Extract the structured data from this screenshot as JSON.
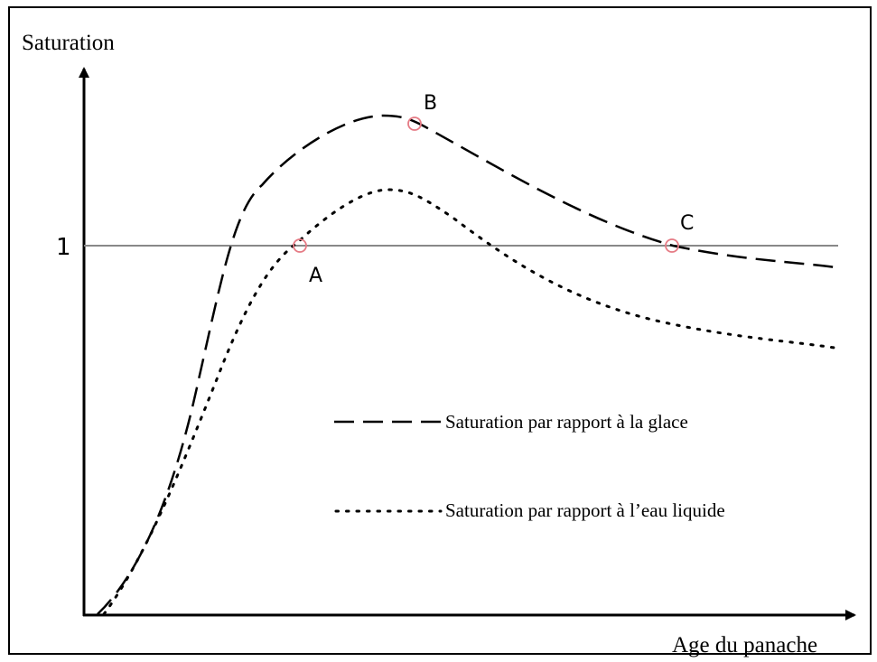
{
  "y_axis_label": "Saturation",
  "x_axis_label": "Age du panache",
  "reference_label": "1",
  "points": [
    "A",
    "B",
    "C"
  ],
  "legend": [
    "Saturation par rapport à la glace",
    "Saturation par rapport à l’eau liquide"
  ]
}
